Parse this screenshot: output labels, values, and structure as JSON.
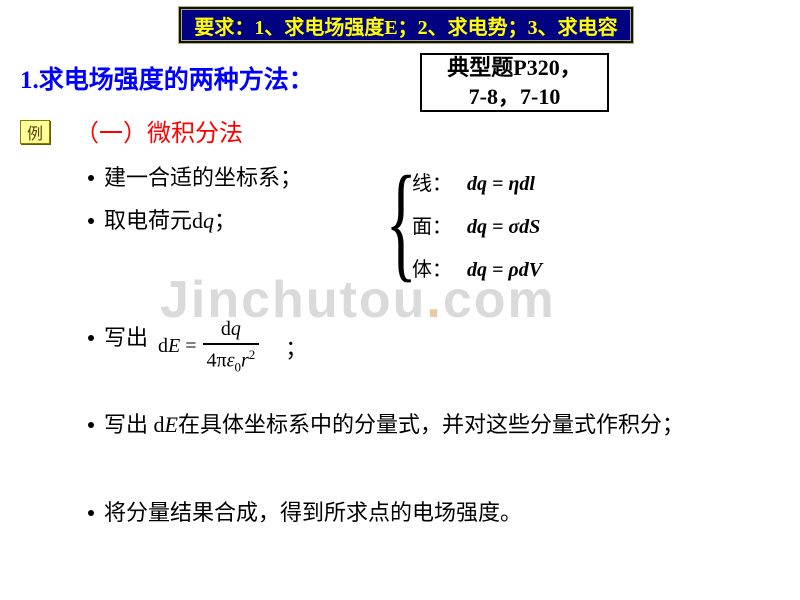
{
  "header": {
    "text": "要求：1、求电场强度E；2、求电势；3、求电容",
    "bg_color": "#000080",
    "text_color": "#ffff00",
    "border_color": "#c0c000"
  },
  "title": {
    "text": "1.求电场强度的两种方法：",
    "color": "#0000ff"
  },
  "reference": {
    "line1": "典型题P320，",
    "line2": "7-8，7-10"
  },
  "example_badge": "例",
  "subtitle": {
    "text": "（一）微积分法",
    "color": "#ff0000"
  },
  "bullets": {
    "b1": "建一合适的坐标系；",
    "b2_pre": "取电荷元d",
    "b2_var": "q",
    "b2_post": "；",
    "b3_pre": "写出 ",
    "b4_pre": "写出 d",
    "b4_var": "E",
    "b4_rest": "在具体坐标系中的分量式，并对这些分量式作积分；",
    "b5": "将分量结果合成，得到所求点的电场强度。"
  },
  "brace_rows": {
    "r1_label": "线：",
    "r1_eq": "dq = ηdl",
    "r2_label": "面：",
    "r2_eq": "dq = σdS",
    "r3_label": "体：",
    "r3_eq": "dq = ρdV"
  },
  "formula": {
    "left": "d",
    "left_var": "E",
    "eq": " = ",
    "num_d": "d",
    "num_var": "q",
    "den_4pi": "4π",
    "den_eps": "ε",
    "den_eps_sub": "0",
    "den_r": "r",
    "den_r_sup": "2"
  },
  "watermark": {
    "part1": "Jinchutou",
    "dot": ".",
    "part2": "com"
  }
}
